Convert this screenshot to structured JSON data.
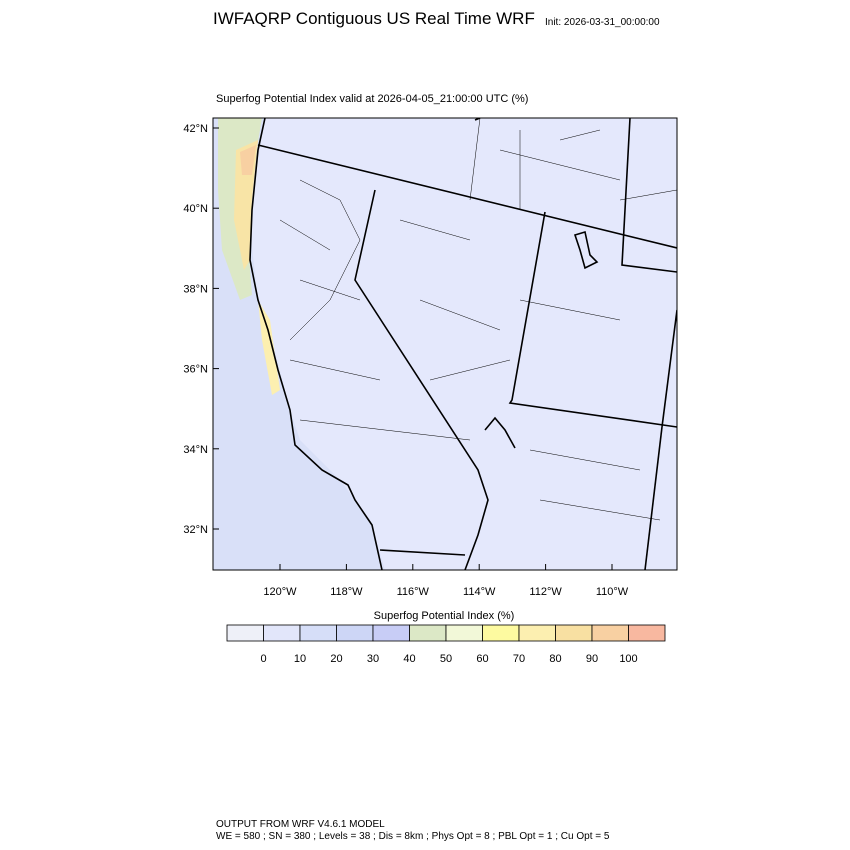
{
  "header": {
    "title": "IWFAQRP Contiguous US Real Time WRF",
    "init": "Init: 2026-03-31_00:00:00"
  },
  "map": {
    "subtitle": "Superfog Potential Index valid at 2026-04-05_21:00:00 UTC   (%)",
    "lat_labels": [
      "42°N",
      "40°N",
      "38°N",
      "36°N",
      "34°N",
      "32°N"
    ],
    "lon_labels": [
      "120°W",
      "118°W",
      "116°W",
      "114°W",
      "112°W",
      "110°W"
    ]
  },
  "colorbar": {
    "title": "Superfog Potential Index  (%)",
    "labels": [
      "0",
      "10",
      "20",
      "30",
      "40",
      "50",
      "60",
      "70",
      "80",
      "90",
      "100"
    ],
    "colors": [
      "#eef0f8",
      "#e2e6fa",
      "#d6def8",
      "#cdd6f6",
      "#c8cdf6",
      "#dce8c6",
      "#f2f8d8",
      "#fdfaa0",
      "#fcefb0",
      "#f8e0a2",
      "#f8d0a2",
      "#f8b8a0"
    ]
  },
  "footer": {
    "line1": "OUTPUT FROM WRF V4.6.1 MODEL",
    "line2": "WE = 580 ; SN = 380 ; Levels = 38 ; Dis = 8km ; Phys Opt = 8 ; PBL Opt = 1 ; Cu Opt = 5"
  }
}
